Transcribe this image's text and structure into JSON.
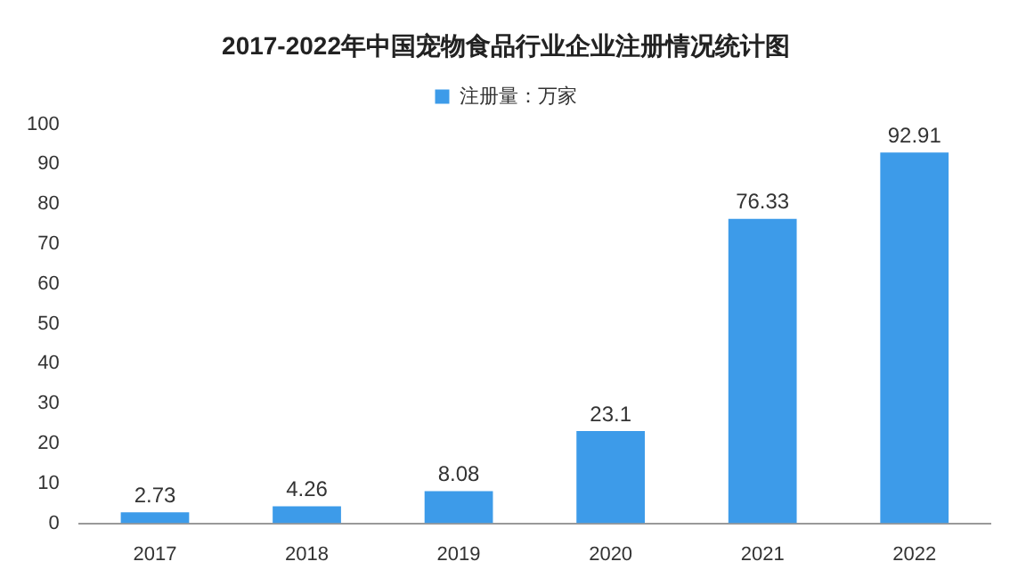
{
  "chart_data": {
    "type": "bar",
    "title": "2017-2022年中国宠物食品行业企业注册情况统计图",
    "categories": [
      "2017",
      "2018",
      "2019",
      "2020",
      "2021",
      "2022"
    ],
    "series": [
      {
        "name": "注册量：万家",
        "color": "#3d9be9",
        "values": [
          2.73,
          4.26,
          8.08,
          23.1,
          76.33,
          92.91
        ]
      }
    ],
    "ylim": [
      0,
      100
    ],
    "yticks": [
      0,
      10,
      20,
      30,
      40,
      50,
      60,
      70,
      80,
      90,
      100
    ],
    "grid": false,
    "legend": "top",
    "data_labels": true
  }
}
